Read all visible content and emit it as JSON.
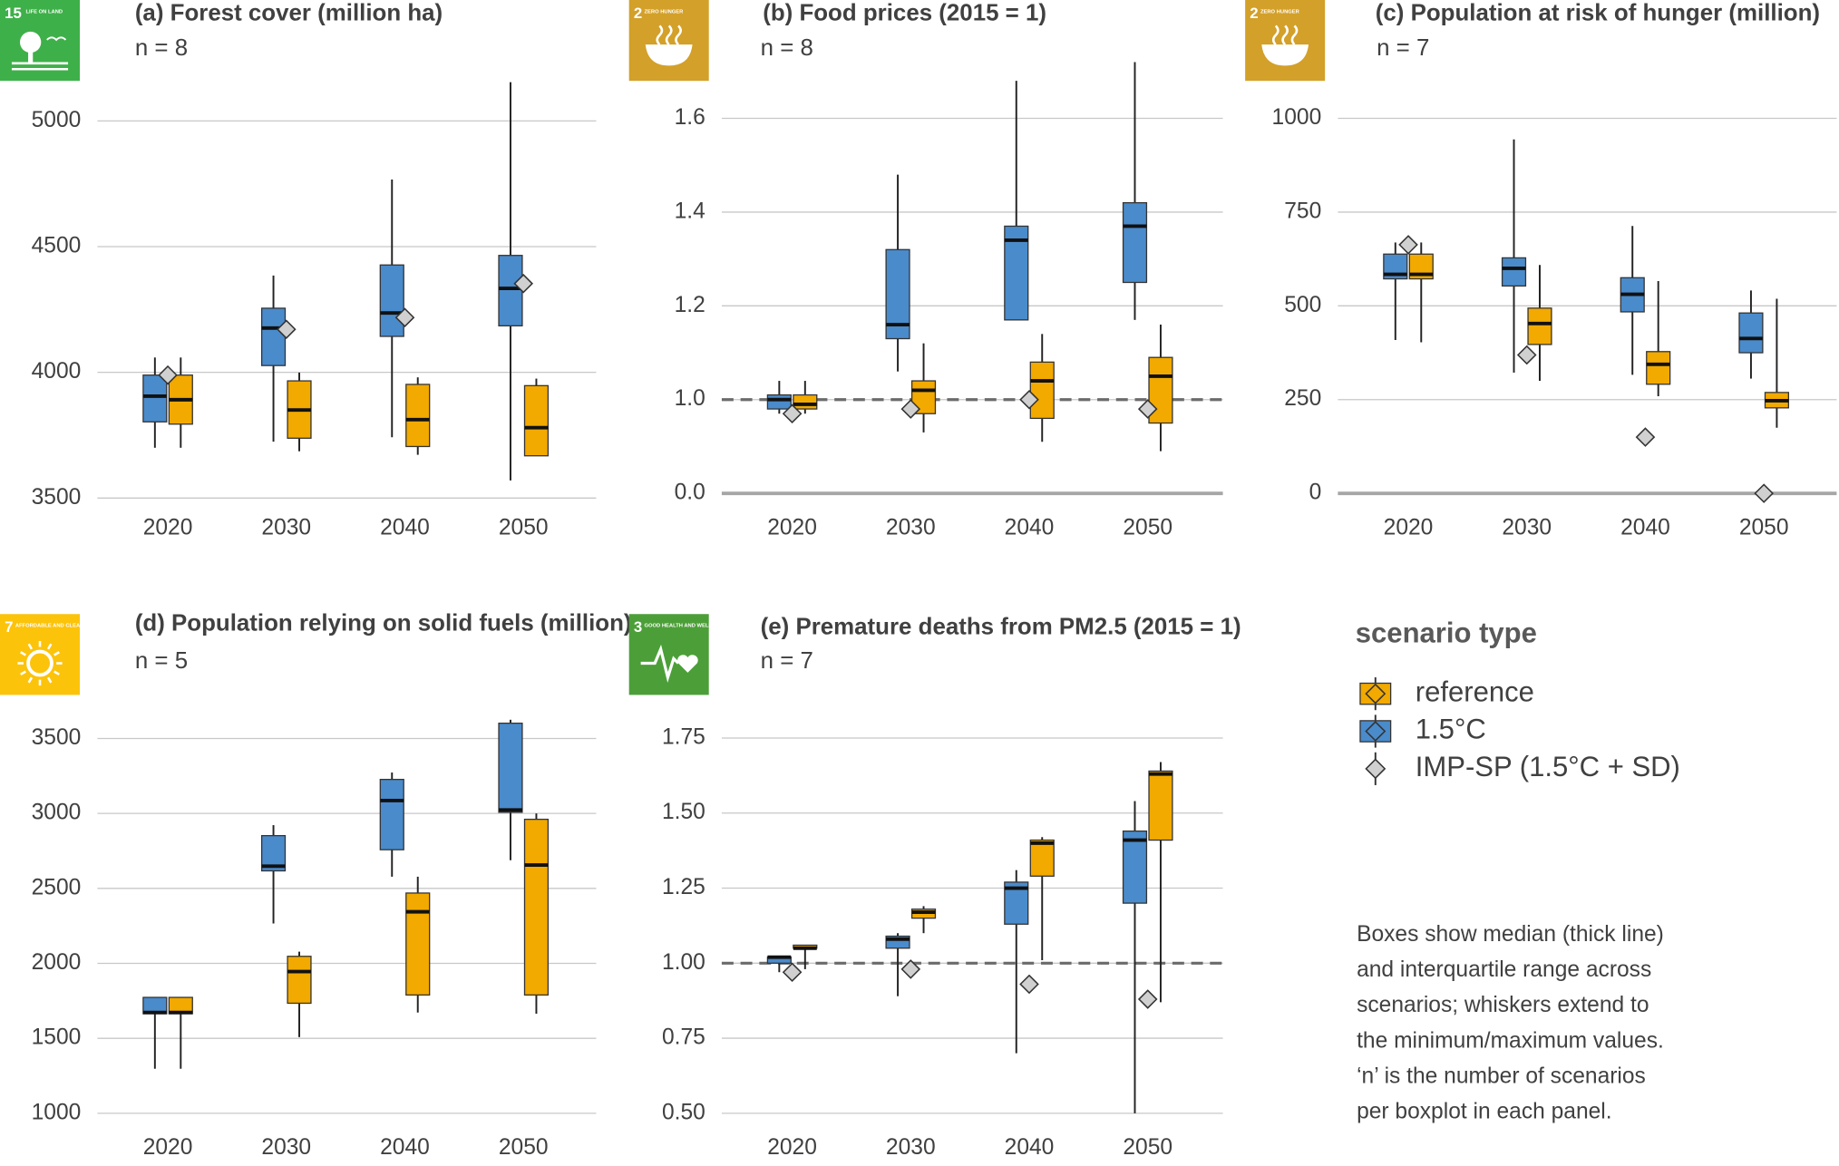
{
  "chart_data": [
    {
      "type": "box",
      "title": "(a) Forest cover (million ha)",
      "n": "n = 8",
      "icon": {
        "number": "15",
        "label": "LIFE ON LAND",
        "color": "#3eb049"
      },
      "categories": [
        "2020",
        "2030",
        "2040",
        "2050"
      ],
      "ylim": [
        3500,
        5150
      ],
      "yticks": [
        3500,
        4000,
        4500,
        5000
      ],
      "grid": true,
      "series": [
        {
          "min": [
            3700,
            3686,
            3672,
            3668
          ],
          "q1": [
            3794,
            3738,
            3705,
            3668
          ],
          "median": [
            3891,
            3850,
            3812,
            3780
          ],
          "q3": [
            3989,
            3966,
            3952,
            3947
          ],
          "max": [
            4059,
            3999,
            3980,
            3975
          ]
        },
        {
          "min": [
            3700,
            3724,
            3742,
            3570
          ],
          "q1": [
            3803,
            4027,
            4143,
            4185
          ],
          "median": [
            3905,
            4176,
            4236,
            4334
          ],
          "q3": [
            3989,
            4255,
            4427,
            4465
          ],
          "max": [
            4059,
            4385,
            4767,
            5154
          ]
        },
        {
          "values": [
            3989,
            4171,
            4218,
            4353
          ]
        }
      ]
    },
    {
      "type": "box",
      "title": "(b) Food prices (2015 = 1)",
      "n": "n = 8",
      "icon": {
        "number": "2",
        "label": "ZERO HUNGER",
        "color": "#d3a029"
      },
      "categories": [
        "2020",
        "2030",
        "2040",
        "2050"
      ],
      "ylim": [
        0.8,
        1.7
      ],
      "yticks": [
        {
          "value": 1,
          "label": "1.0"
        },
        1.2,
        1.4,
        1.6
      ],
      "grid": true,
      "baseline_tick": {
        "value": 0,
        "label": "0.0"
      },
      "reference_line": 1,
      "series": [
        {
          "min": [
            0.97,
            0.93,
            0.91,
            0.89
          ],
          "q1": [
            0.98,
            0.97,
            0.96,
            0.95
          ],
          "median": [
            0.99,
            1.02,
            1.04,
            1.05
          ],
          "q3": [
            1.01,
            1.04,
            1.08,
            1.09
          ],
          "max": [
            1.04,
            1.12,
            1.14,
            1.16
          ]
        },
        {
          "min": [
            0.97,
            1.06,
            1.17,
            1.17
          ],
          "q1": [
            0.98,
            1.13,
            1.17,
            1.25
          ],
          "median": [
            1.0,
            1.16,
            1.34,
            1.37
          ],
          "q3": [
            1.01,
            1.32,
            1.37,
            1.42
          ],
          "max": [
            1.04,
            1.48,
            1.68,
            1.72
          ]
        },
        {
          "values": [
            0.97,
            0.98,
            1.0,
            0.98
          ]
        }
      ]
    },
    {
      "type": "box",
      "title": "(c) Population at risk of hunger (million)",
      "n": "n = 7",
      "icon": {
        "number": "2",
        "label": "ZERO HUNGER",
        "color": "#d3a029"
      },
      "categories": [
        "2020",
        "2030",
        "2040",
        "2050"
      ],
      "ylim": [
        0,
        1050
      ],
      "yticks": [
        0,
        250,
        500,
        750,
        1000
      ],
      "grid": true,
      "zero_line": true,
      "series": [
        {
          "min": [
            403,
            300,
            259,
            175
          ],
          "q1": [
            572,
            397,
            291,
            228
          ],
          "median": [
            584,
            453,
            344,
            247
          ],
          "q3": [
            638,
            494,
            378,
            269
          ],
          "max": [
            669,
            609,
            566,
            519
          ]
        },
        {
          "min": [
            409,
            322,
            316,
            306
          ],
          "q1": [
            572,
            553,
            484,
            375
          ],
          "median": [
            584,
            600,
            531,
            413
          ],
          "q3": [
            638,
            628,
            575,
            481
          ],
          "max": [
            669,
            944,
            713,
            541
          ]
        },
        {
          "values": [
            663,
            369,
            150,
            0
          ]
        }
      ]
    },
    {
      "type": "box",
      "title": "(d) Population relying on solid fuels (million)",
      "n": "n = 5",
      "icon": {
        "number": "7",
        "label": "AFFORDABLE AND CLEAN ENERGY",
        "color": "#fcc30b"
      },
      "categories": [
        "2020",
        "2030",
        "2040",
        "2050"
      ],
      "ylim": [
        1000,
        3650
      ],
      "yticks": [
        1000,
        1500,
        2000,
        2500,
        3000,
        3500
      ],
      "grid": true,
      "series": [
        {
          "min": [
            1297,
            1508,
            1672,
            1664
          ],
          "q1": [
            1664,
            1734,
            1789,
            1789
          ],
          "median": [
            1672,
            1945,
            2344,
            2656
          ],
          "q3": [
            1773,
            2047,
            2469,
            2961
          ],
          "max": [
            1773,
            2078,
            2578,
            3000
          ]
        },
        {
          "min": [
            1297,
            2266,
            2578,
            2688
          ],
          "q1": [
            1664,
            2617,
            2758,
            3008
          ],
          "median": [
            1672,
            2648,
            3086,
            3023
          ],
          "q3": [
            1773,
            2852,
            3227,
            3602
          ],
          "max": [
            1773,
            2922,
            3273,
            3625
          ]
        },
        {
          "values": [
            null,
            null,
            null,
            null
          ]
        }
      ]
    },
    {
      "type": "box",
      "title": "(e) Premature deaths from PM2.5 (2015 = 1)",
      "n": "n = 7",
      "icon": {
        "number": "3",
        "label": "GOOD HEALTH AND WELL-BEING",
        "color": "#4c9f38"
      },
      "categories": [
        "2020",
        "2030",
        "2040",
        "2050"
      ],
      "ylim": [
        0.5,
        1.8
      ],
      "yticks": [
        {
          "value": 0.5,
          "label": "0.50"
        },
        0.75,
        {
          "value": 1,
          "label": "1.00"
        },
        1.25,
        {
          "value": 1.5,
          "label": "1.50"
        },
        1.75
      ],
      "grid": true,
      "reference_line": 1,
      "series": [
        {
          "min": [
            0.98,
            1.1,
            1.01,
            0.87
          ],
          "q1": [
            1.05,
            1.15,
            1.29,
            1.41
          ],
          "median": [
            1.05,
            1.17,
            1.4,
            1.63
          ],
          "q3": [
            1.06,
            1.18,
            1.41,
            1.64
          ],
          "max": [
            1.06,
            1.19,
            1.42,
            1.67
          ]
        },
        {
          "min": [
            0.97,
            0.89,
            0.7,
            0.5
          ],
          "q1": [
            1.0,
            1.05,
            1.13,
            1.2
          ],
          "median": [
            1.02,
            1.08,
            1.25,
            1.41
          ],
          "q3": [
            1.02,
            1.09,
            1.27,
            1.44
          ],
          "max": [
            1.02,
            1.1,
            1.31,
            1.54
          ]
        },
        {
          "values": [
            0.97,
            0.98,
            0.93,
            0.88
          ]
        }
      ]
    }
  ],
  "legend": {
    "title": "scenario type",
    "items": [
      {
        "name": "reference",
        "color": "#f2a900"
      },
      {
        "name": "1.5°C",
        "color": "#4a8bcb"
      },
      {
        "name": "IMP-SP (1.5°C + SD)",
        "color": "#d0d0d0"
      }
    ]
  },
  "note": [
    "Boxes show median (thick line)",
    "and interquartile range across",
    "scenarios; whiskers extend to",
    "the minimum/maximum values.",
    "‘n’ is the number of scenarios",
    "per boxplot in each panel."
  ]
}
